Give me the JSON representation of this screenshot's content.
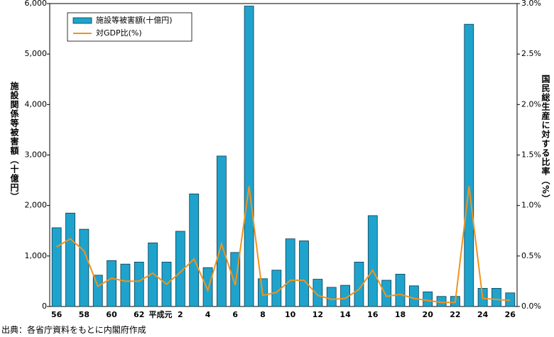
{
  "chart_data": {
    "type": "bar-line",
    "ylabel": "施設関係等被害額（十億円）",
    "y2label": "国民総生産に対する比率（%）",
    "source": "出典：各省庁資料をもとに内閣府作成",
    "categories": [
      "56",
      null,
      "58",
      null,
      "60",
      null,
      "62",
      null,
      "平成元",
      "2",
      null,
      "4",
      null,
      "6",
      null,
      "8",
      null,
      "10",
      null,
      "12",
      null,
      "14",
      null,
      "16",
      null,
      "18",
      null,
      "20",
      null,
      "22",
      null,
      "24",
      null,
      "26"
    ],
    "series": [
      {
        "name": "施設等被害額(十億円)",
        "type": "bar",
        "color": "#1fa3cc",
        "values": [
          1560,
          1850,
          1530,
          620,
          910,
          840,
          880,
          1260,
          880,
          1490,
          2230,
          770,
          2980,
          1070,
          5950,
          550,
          720,
          1340,
          1300,
          540,
          380,
          420,
          880,
          1800,
          520,
          640,
          410,
          290,
          200,
          200,
          5590,
          360,
          360,
          270
        ]
      },
      {
        "name": "対GDP比(%)",
        "type": "line",
        "axis": "y2",
        "color": "#f0931e",
        "values": [
          0.59,
          0.67,
          0.55,
          0.2,
          0.28,
          0.25,
          0.25,
          0.33,
          0.22,
          0.34,
          0.47,
          0.16,
          0.62,
          0.21,
          1.19,
          0.11,
          0.14,
          0.26,
          0.26,
          0.11,
          0.07,
          0.08,
          0.17,
          0.36,
          0.1,
          0.12,
          0.08,
          0.06,
          0.04,
          0.04,
          1.19,
          0.08,
          0.07,
          0.06
        ]
      }
    ],
    "ylim": [
      0,
      6000
    ],
    "yticks": [
      0,
      {
        "value": 1000,
        "label": "1,000"
      },
      {
        "value": 2000,
        "label": "2,000"
      },
      {
        "value": 3000,
        "label": "3,000"
      },
      {
        "value": 4000,
        "label": "4,000"
      },
      {
        "value": 5000,
        "label": "5,000"
      },
      {
        "value": 6000,
        "label": "6,000"
      }
    ],
    "y2lim": [
      0,
      3.0
    ],
    "y2ticks": [
      {
        "value": 0,
        "label": "0.0%"
      },
      {
        "value": 0.5,
        "label": "0.5%"
      },
      {
        "value": 1.0,
        "label": "1.0%"
      },
      {
        "value": 1.5,
        "label": "1.5%"
      },
      {
        "value": 2.0,
        "label": "2.0%"
      },
      {
        "value": 2.5,
        "label": "2.5%"
      },
      {
        "value": 3.0,
        "label": "3.0%"
      }
    ],
    "legend": "upper left"
  }
}
